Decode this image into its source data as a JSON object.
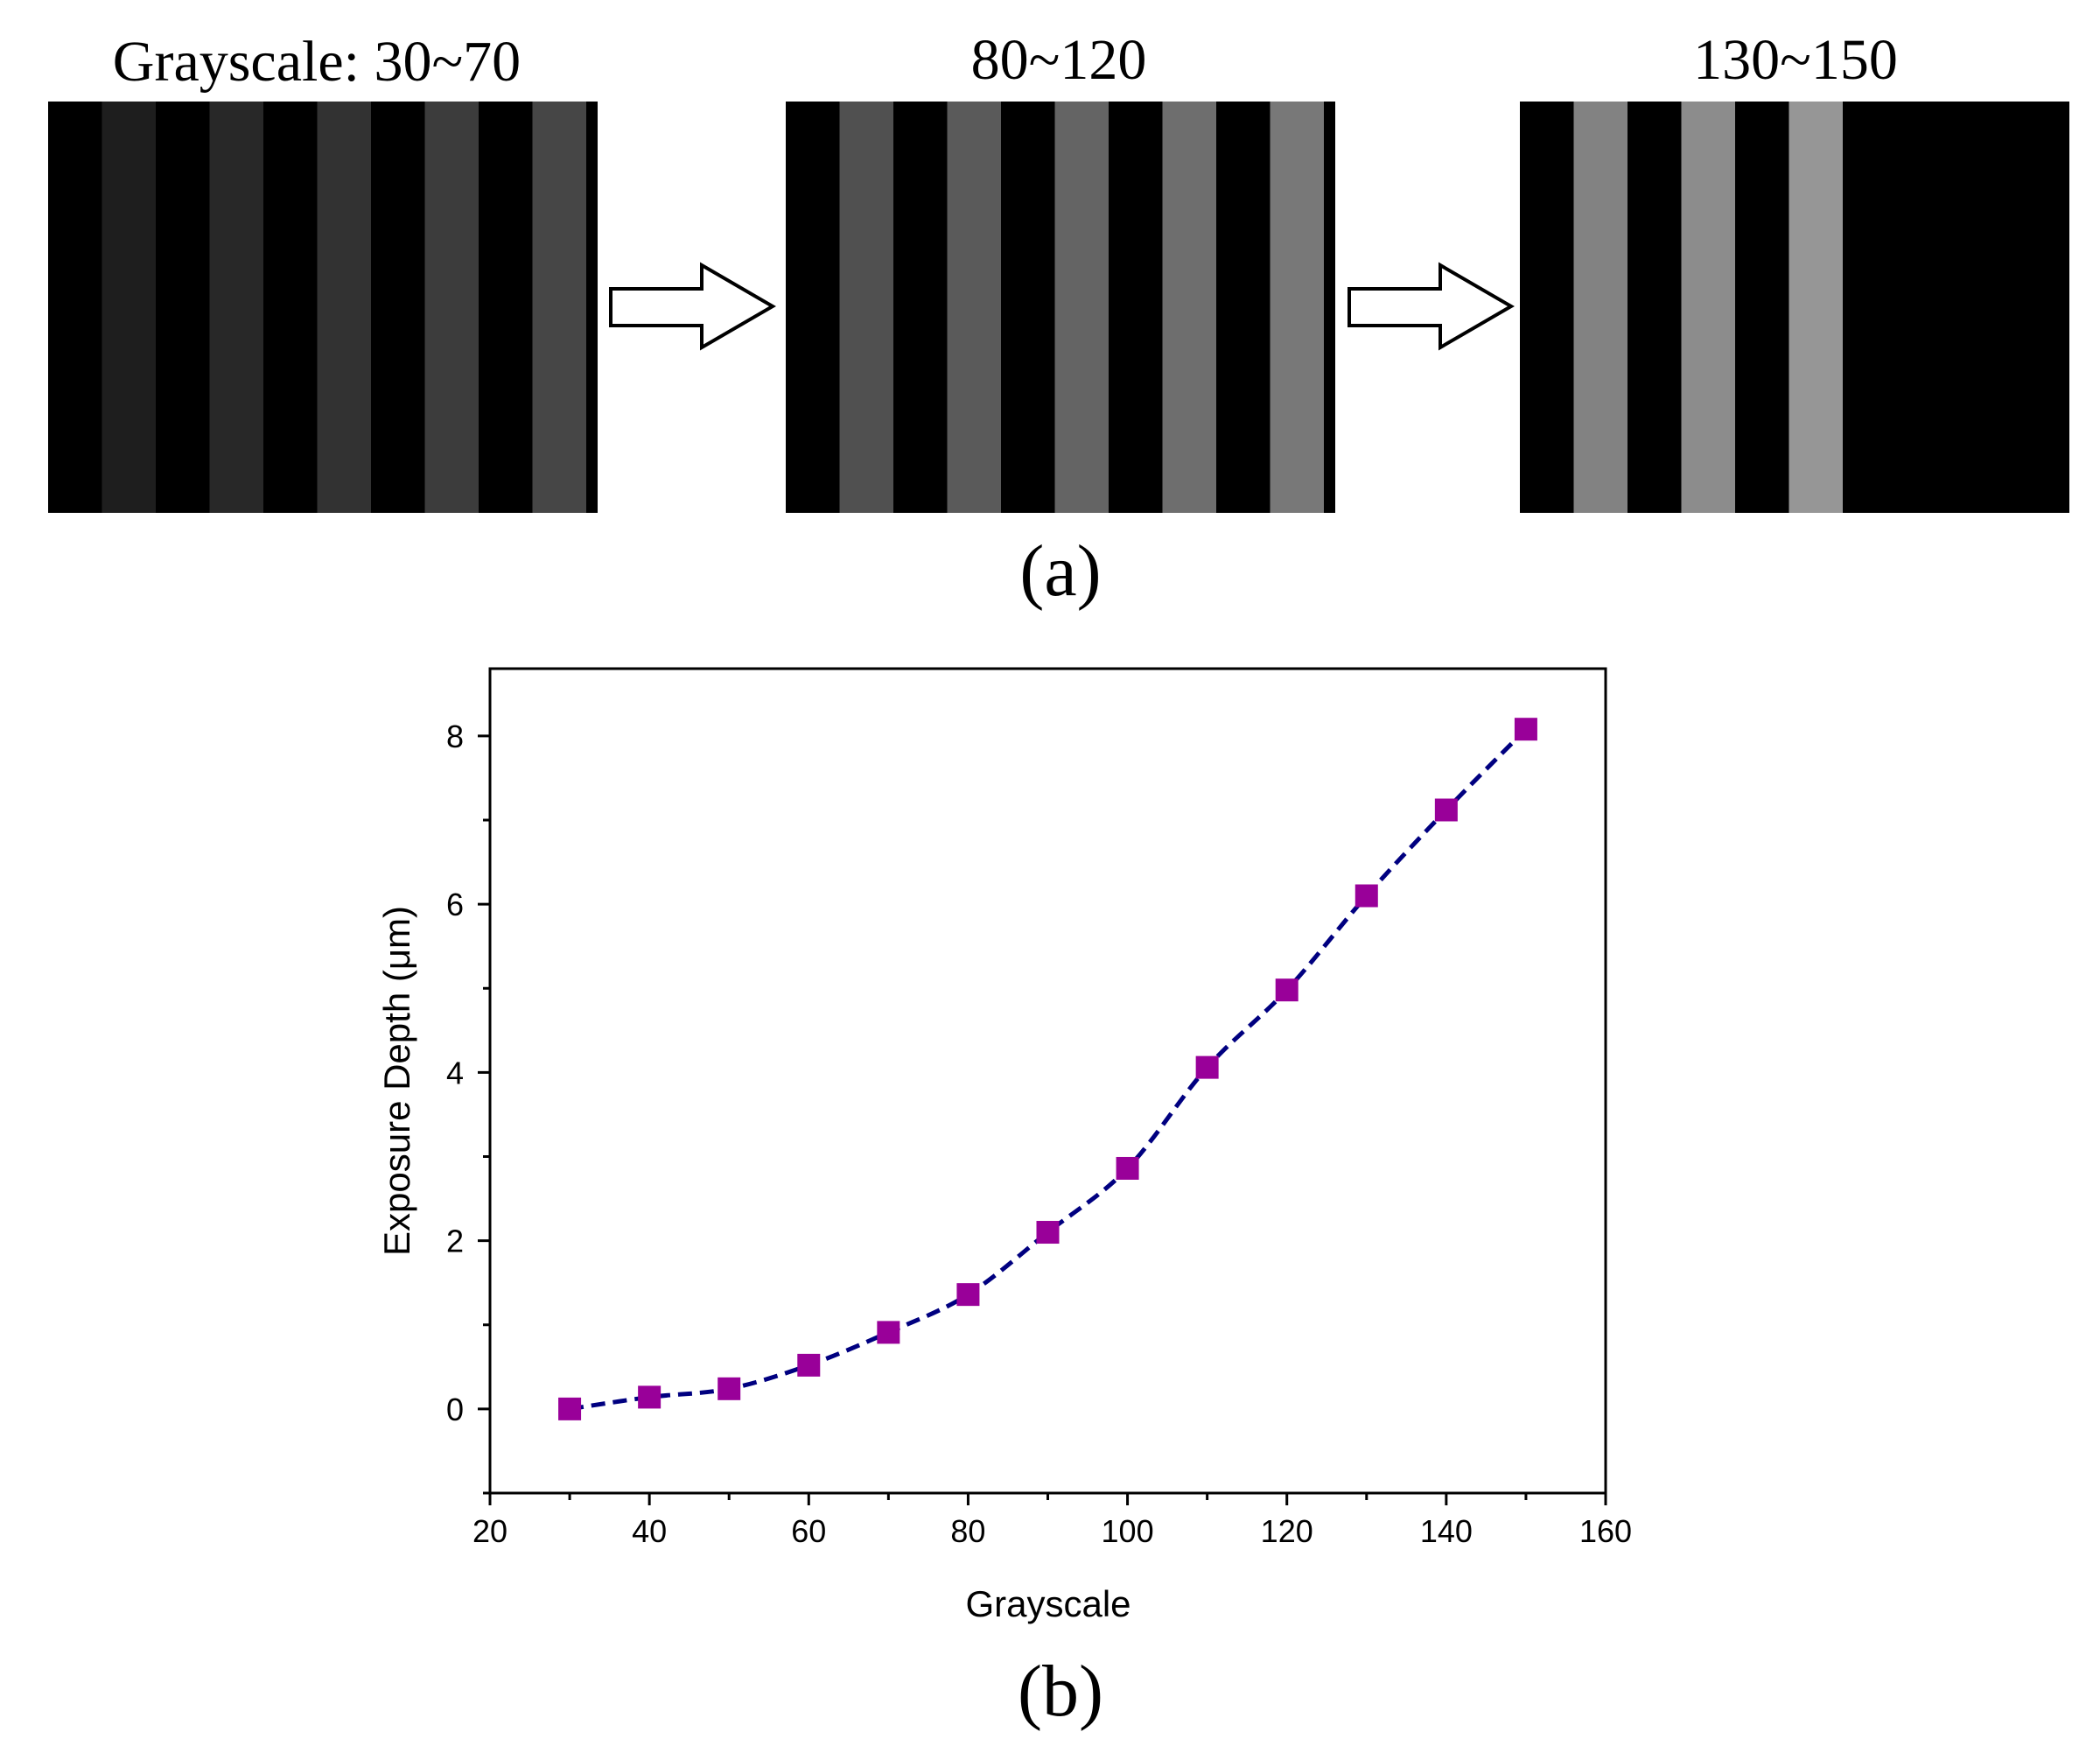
{
  "panel_a": {
    "caption": "(a)",
    "patterns": [
      {
        "label": "Grayscale: 30~70",
        "stripe_gray": [
          30,
          40,
          50,
          60,
          70
        ]
      },
      {
        "label": "80~120",
        "stripe_gray": [
          80,
          90,
          100,
          110,
          120
        ]
      },
      {
        "label": "130~150",
        "stripe_gray": [
          130,
          140,
          150
        ]
      }
    ],
    "arrow_icon": "right-arrow-outline-icon"
  },
  "panel_b": {
    "caption": "(b)"
  },
  "chart_data": {
    "type": "scatter",
    "title": "",
    "xlabel": "Grayscale",
    "ylabel": "Exposure Depth (μm)",
    "xlim": [
      20,
      160
    ],
    "ylim": [
      -1,
      8.8
    ],
    "xticks": [
      20,
      40,
      60,
      80,
      100,
      120,
      140,
      160
    ],
    "yticks": [
      0,
      2,
      4,
      6,
      8
    ],
    "grid": false,
    "series": [
      {
        "name": "Exposure Depth",
        "marker": "square",
        "marker_color": "#990099",
        "line_style": "dashed",
        "line_color": "#000080",
        "x": [
          30,
          40,
          50,
          60,
          70,
          80,
          90,
          100,
          110,
          120,
          130,
          140,
          150
        ],
        "y": [
          0.0,
          0.14,
          0.24,
          0.52,
          0.91,
          1.36,
          2.1,
          2.86,
          4.06,
          4.98,
          6.1,
          7.12,
          8.08
        ]
      }
    ]
  }
}
